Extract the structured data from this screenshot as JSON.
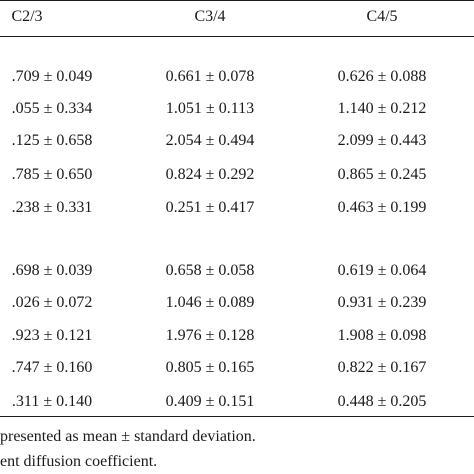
{
  "table": {
    "headers": [
      "C2/3",
      "C3/4",
      "C4/5"
    ],
    "group1": {
      "rows": [
        [
          ".709 ± 0.049",
          "0.661 ± 0.078",
          "0.626 ± 0.088"
        ],
        [
          ".055 ± 0.334",
          "1.051 ± 0.113",
          "1.140 ± 0.212"
        ],
        [
          ".125 ± 0.658",
          "2.054 ± 0.494",
          "2.099 ± 0.443"
        ],
        [
          ".785 ± 0.650",
          "0.824 ± 0.292",
          "0.865 ± 0.245"
        ],
        [
          ".238 ± 0.331",
          "0.251 ± 0.417",
          "0.463 ± 0.199"
        ]
      ]
    },
    "group2": {
      "rows": [
        [
          ".698 ± 0.039",
          "0.658 ± 0.058",
          "0.619 ± 0.064"
        ],
        [
          ".026 ± 0.072",
          "1.046 ± 0.089",
          "0.931 ± 0.239"
        ],
        [
          ".923 ± 0.121",
          "1.976 ± 0.128",
          "1.908 ± 0.098"
        ],
        [
          ".747 ± 0.160",
          "0.805 ± 0.165",
          "0.822 ± 0.167"
        ],
        [
          ".311 ± 0.140",
          "0.409 ± 0.151",
          "0.448 ± 0.205"
        ]
      ]
    }
  },
  "footnotes": {
    "line1": "presented as mean ± standard deviation.",
    "line2": "ent diffusion coefficient."
  }
}
